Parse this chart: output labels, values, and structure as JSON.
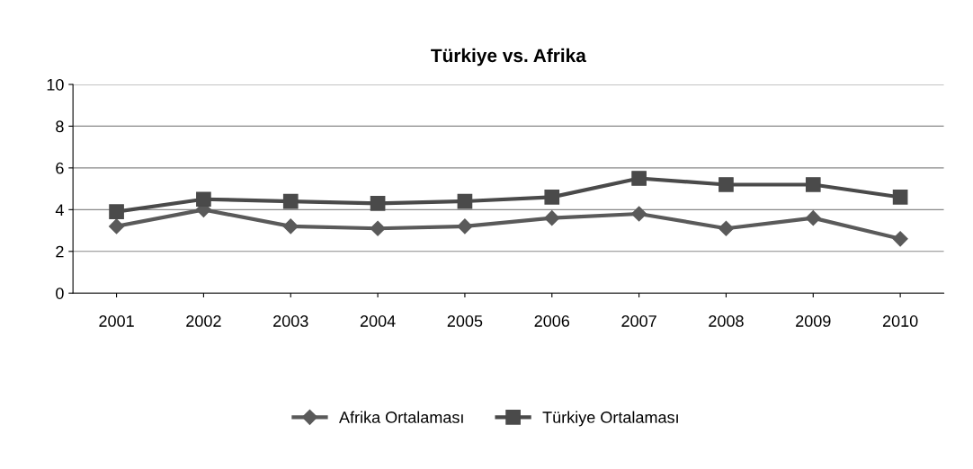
{
  "chart_data": {
    "type": "line",
    "title": "Türkiye vs. Afrika",
    "categories": [
      "2001",
      "2002",
      "2003",
      "2004",
      "2005",
      "2006",
      "2007",
      "2008",
      "2009",
      "2010"
    ],
    "series": [
      {
        "name": "Afrika Ortalaması",
        "color": "#5a5a5a",
        "marker": "diamond",
        "values": [
          3.2,
          4.0,
          3.2,
          3.1,
          3.2,
          3.6,
          3.8,
          3.1,
          3.6,
          2.6
        ]
      },
      {
        "name": "Türkiye Ortalaması",
        "color": "#4a4a4a",
        "marker": "square",
        "values": [
          3.9,
          4.5,
          4.4,
          4.3,
          4.4,
          4.6,
          5.5,
          5.2,
          5.2,
          4.6
        ]
      }
    ],
    "ylim": [
      0,
      10
    ],
    "yticks": [
      0,
      2,
      4,
      6,
      8,
      10
    ],
    "grid": "y",
    "legend": "bottom"
  }
}
